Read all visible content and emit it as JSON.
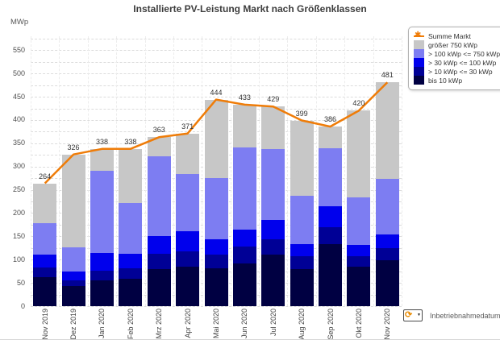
{
  "title": "Installierte PV-Leistung Markt nach Größenklassen",
  "y_axis": {
    "unit": "MWp",
    "min": 0,
    "max": 580,
    "tick_step": 50,
    "minor_step": 25,
    "tick_labels": [
      0,
      50,
      100,
      150,
      200,
      250,
      300,
      350,
      400,
      450,
      500,
      550
    ]
  },
  "x_axis": {
    "field_label": "Inbetriebnahmedatum"
  },
  "legend": {
    "items": [
      {
        "label": "Summe Markt",
        "marker": "line-star",
        "color": "#ef7c08"
      },
      {
        "label": "größer 750 kWp",
        "marker": "swatch",
        "color": "#c7c7c7"
      },
      {
        "label": "> 100 kWp <= 750 kWp",
        "marker": "swatch",
        "color": "#7d7df2"
      },
      {
        "label": "> 30 kWp <= 100 kWp",
        "marker": "swatch",
        "color": "#0000ed"
      },
      {
        "label": "> 10 kWp <= 30 kWp",
        "marker": "swatch",
        "color": "#000096"
      },
      {
        "label": "bis 10 kWp",
        "marker": "swatch",
        "color": "#000042"
      }
    ]
  },
  "chart_data": {
    "type": "bar",
    "subtype": "stacked-bars-with-total-line",
    "title": "Installierte PV-Leistung Markt nach Größenklassen",
    "ylabel": "MWp",
    "ylim": [
      0,
      580
    ],
    "grid": "horizontal-dashed",
    "legend_position": "top-right",
    "categories": [
      "Nov 2019",
      "Dez 2019",
      "Jan 2020",
      "Feb 2020",
      "Mrz 2020",
      "Apr 2020",
      "Mai 2020",
      "Jun 2020",
      "Jul 2020",
      "Aug 2020",
      "Sep 2020",
      "Okt 2020",
      "Nov 2020"
    ],
    "series": [
      {
        "name": "bis 10 kWp",
        "color": "#000042",
        "values": [
          63,
          43,
          56,
          59,
          80,
          85,
          81,
          92,
          110,
          80,
          134,
          84,
          99
        ]
      },
      {
        "name": "> 10 kWp <= 30 kWp",
        "color": "#000096",
        "values": [
          21,
          12,
          20,
          23,
          33,
          32,
          30,
          36,
          33,
          27,
          36,
          24,
          25
        ]
      },
      {
        "name": "> 30 kWp <= 100 kWp",
        "color": "#0000ed",
        "values": [
          26,
          20,
          38,
          30,
          38,
          44,
          32,
          36,
          43,
          27,
          44,
          23,
          31
        ]
      },
      {
        "name": "> 100 kWp <= 750 kWp",
        "color": "#7d7df2",
        "values": [
          69,
          52,
          177,
          110,
          171,
          123,
          133,
          177,
          151,
          103,
          125,
          102,
          119
        ]
      },
      {
        "name": "größer 750 kWp",
        "color": "#c7c7c7",
        "values": [
          85,
          199,
          47,
          116,
          41,
          87,
          168,
          92,
          92,
          162,
          47,
          187,
          207
        ]
      }
    ],
    "line_series": {
      "name": "Summe Markt",
      "color": "#ef7c08",
      "values": [
        264,
        326,
        338,
        338,
        363,
        371,
        444,
        433,
        429,
        399,
        386,
        420,
        481
      ]
    }
  }
}
